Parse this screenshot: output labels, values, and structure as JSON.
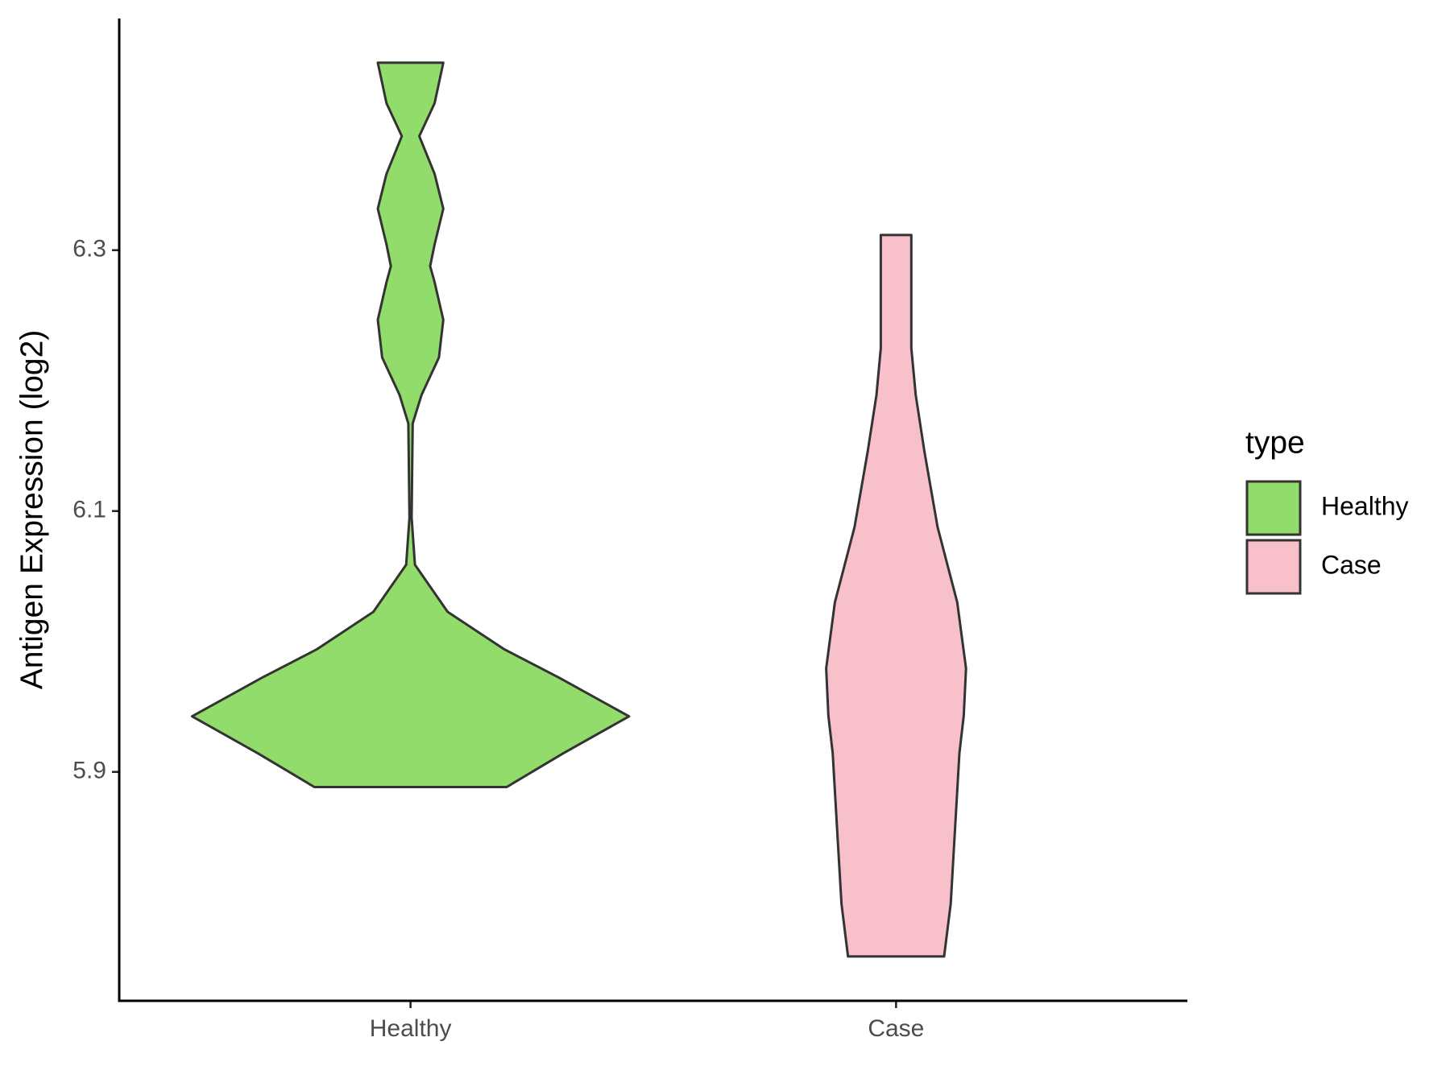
{
  "chart_data": {
    "type": "violin",
    "y_label": "Antigen Expression (log2)",
    "categories": [
      "Healthy",
      "Case"
    ],
    "legend_title": "type",
    "legend_position": "right",
    "ylim": [
      5.7245,
      6.4776
    ],
    "yticks": [
      5.9,
      6.1,
      6.3
    ],
    "series": [
      {
        "name": "Healthy",
        "color": "#91dc6a",
        "y": [
          5.8884,
          5.9144,
          5.9426,
          5.9722,
          5.9939,
          6.0227,
          6.0588,
          6.0949,
          6.1671,
          6.1888,
          6.2177,
          6.2466,
          6.2755,
          6.2877,
          6.3043,
          6.3318,
          6.3585,
          6.3874,
          6.4126,
          6.4437
        ],
        "width": [
          0.44,
          0.7,
          1,
          0.68,
          0.43,
          0.17,
          0.02,
          0.005,
          0.01,
          0.05,
          0.13,
          0.15,
          0.11,
          0.09,
          0.11,
          0.15,
          0.11,
          0.04,
          0.11,
          0.15
        ]
      },
      {
        "name": "Case",
        "color": "#f7c0cb",
        "y": [
          5.7585,
          5.7989,
          5.8567,
          5.9144,
          5.9433,
          5.9794,
          6.03,
          6.0877,
          6.1455,
          6.1888,
          6.2249,
          6.2755,
          6.3116
        ],
        "width": [
          0.22,
          0.25,
          0.27,
          0.29,
          0.31,
          0.32,
          0.28,
          0.19,
          0.13,
          0.09,
          0.07,
          0.07,
          0.07
        ]
      }
    ]
  }
}
